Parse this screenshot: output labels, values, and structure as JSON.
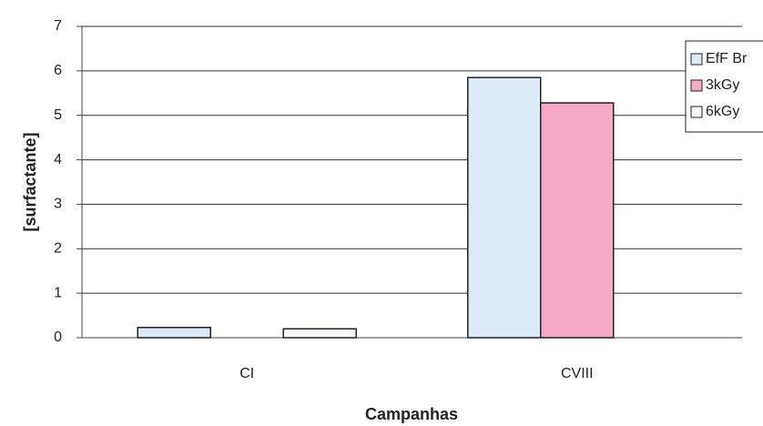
{
  "chart_data": {
    "type": "bar",
    "categories": [
      "CI",
      "CVIII"
    ],
    "series": [
      {
        "name": "EfF Br",
        "color": "#dce9f7",
        "values": [
          0.23,
          5.85
        ]
      },
      {
        "name": "3kGy",
        "color": "#f7a9c9",
        "values": [
          null,
          5.28
        ]
      },
      {
        "name": "6kGy",
        "color": "#f5f7fb",
        "values": [
          0.2,
          null
        ]
      }
    ],
    "ylabel": "[surfactante]",
    "xlabel": "Campanhas",
    "ylim": [
      0,
      7
    ],
    "yticks": [
      0,
      1,
      2,
      3,
      4,
      5,
      6,
      7
    ],
    "grid": true,
    "legend": "right"
  }
}
